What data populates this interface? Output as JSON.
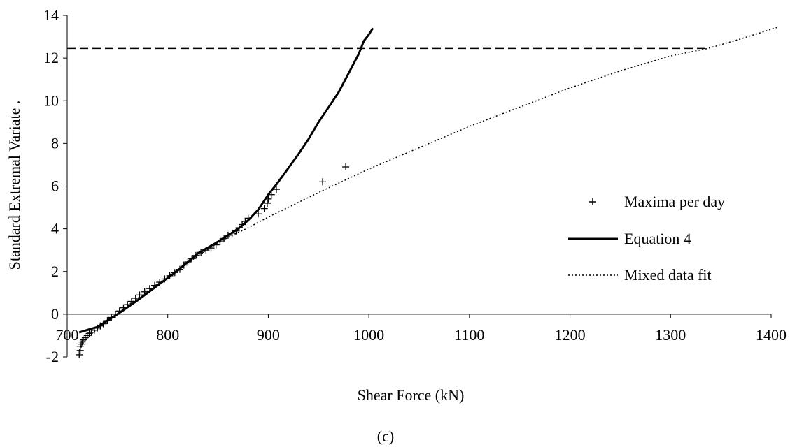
{
  "chart_data": {
    "type": "scatter",
    "xlabel": "Shear Force (kN)",
    "ylabel": "Standard Extremal Variate  .",
    "caption": "(c)",
    "xlim": [
      700,
      1400
    ],
    "ylim": [
      -2,
      14
    ],
    "x_ticks": [
      {
        "value": 700,
        "label": "700"
      },
      {
        "value": 800,
        "label": "800"
      },
      {
        "value": 900,
        "label": "900"
      },
      {
        "value": 1000,
        "label": "1000"
      },
      {
        "value": 1100,
        "label": "1100"
      },
      {
        "value": 1200,
        "label": "1200"
      },
      {
        "value": 1300,
        "label": "1300"
      },
      {
        "value": 1400,
        "label": "1400"
      }
    ],
    "y_ticks": [
      {
        "value": -2,
        "label": "-2"
      },
      {
        "value": 0,
        "label": "0"
      },
      {
        "value": 2,
        "label": "2"
      },
      {
        "value": 4,
        "label": "4"
      },
      {
        "value": 6,
        "label": "6"
      },
      {
        "value": 8,
        "label": "8"
      },
      {
        "value": 10,
        "label": "10"
      },
      {
        "value": 12,
        "label": "12"
      },
      {
        "value": 14,
        "label": "14"
      }
    ],
    "grid": false,
    "legend_position": "right",
    "series": [
      {
        "name": "Maxima per day",
        "kind": "scatter",
        "marker": "plus",
        "points": [
          [
            712,
            -1.9
          ],
          [
            713,
            -1.7
          ],
          [
            713,
            -1.5
          ],
          [
            714,
            -1.4
          ],
          [
            715,
            -1.3
          ],
          [
            716,
            -1.2
          ],
          [
            718,
            -1.1
          ],
          [
            720,
            -1.0
          ],
          [
            722,
            -0.9
          ],
          [
            724,
            -0.85
          ],
          [
            727,
            -0.75
          ],
          [
            730,
            -0.65
          ],
          [
            733,
            -0.55
          ],
          [
            736,
            -0.45
          ],
          [
            740,
            -0.3
          ],
          [
            744,
            -0.15
          ],
          [
            748,
            0.0
          ],
          [
            752,
            0.15
          ],
          [
            756,
            0.3
          ],
          [
            760,
            0.45
          ],
          [
            764,
            0.6
          ],
          [
            768,
            0.75
          ],
          [
            772,
            0.9
          ],
          [
            777,
            1.05
          ],
          [
            782,
            1.2
          ],
          [
            787,
            1.35
          ],
          [
            792,
            1.5
          ],
          [
            797,
            1.65
          ],
          [
            802,
            1.8
          ],
          [
            807,
            1.95
          ],
          [
            812,
            2.1
          ],
          [
            816,
            2.3
          ],
          [
            820,
            2.45
          ],
          [
            824,
            2.6
          ],
          [
            828,
            2.75
          ],
          [
            833,
            2.9
          ],
          [
            838,
            3.0
          ],
          [
            843,
            3.1
          ],
          [
            848,
            3.25
          ],
          [
            852,
            3.4
          ],
          [
            856,
            3.55
          ],
          [
            860,
            3.7
          ],
          [
            864,
            3.8
          ],
          [
            868,
            3.9
          ],
          [
            871,
            4.05
          ],
          [
            874,
            4.2
          ],
          [
            877,
            4.35
          ],
          [
            880,
            4.5
          ],
          [
            890,
            4.7
          ],
          [
            896,
            4.95
          ],
          [
            899,
            5.2
          ],
          [
            900,
            5.4
          ],
          [
            903,
            5.6
          ],
          [
            908,
            5.85
          ],
          [
            954,
            6.2
          ],
          [
            977,
            6.9
          ]
        ]
      },
      {
        "name": "Equation 4",
        "kind": "line",
        "style": "solid",
        "points": [
          [
            712,
            -0.85
          ],
          [
            730,
            -0.6
          ],
          [
            750,
            0.0
          ],
          [
            770,
            0.65
          ],
          [
            790,
            1.35
          ],
          [
            810,
            2.05
          ],
          [
            830,
            2.85
          ],
          [
            850,
            3.4
          ],
          [
            870,
            4.0
          ],
          [
            880,
            4.4
          ],
          [
            890,
            4.9
          ],
          [
            900,
            5.6
          ],
          [
            910,
            6.2
          ],
          [
            920,
            6.85
          ],
          [
            930,
            7.5
          ],
          [
            940,
            8.2
          ],
          [
            950,
            9.0
          ],
          [
            960,
            9.7
          ],
          [
            970,
            10.4
          ],
          [
            980,
            11.3
          ],
          [
            990,
            12.2
          ],
          [
            995,
            12.8
          ],
          [
            1000,
            13.1
          ],
          [
            1004,
            13.4
          ]
        ]
      },
      {
        "name": "Mixed data fit",
        "kind": "line",
        "style": "dotted",
        "points": [
          [
            712,
            -1.7
          ],
          [
            720,
            -1.05
          ],
          [
            740,
            -0.35
          ],
          [
            760,
            0.4
          ],
          [
            780,
            1.1
          ],
          [
            800,
            1.75
          ],
          [
            820,
            2.4
          ],
          [
            840,
            3.05
          ],
          [
            860,
            3.6
          ],
          [
            880,
            4.05
          ],
          [
            900,
            4.55
          ],
          [
            950,
            5.7
          ],
          [
            1000,
            6.8
          ],
          [
            1050,
            7.8
          ],
          [
            1100,
            8.8
          ],
          [
            1150,
            9.7
          ],
          [
            1200,
            10.6
          ],
          [
            1250,
            11.4
          ],
          [
            1300,
            12.1
          ],
          [
            1337,
            12.45
          ],
          [
            1370,
            12.9
          ],
          [
            1407,
            13.45
          ]
        ]
      },
      {
        "name": "",
        "kind": "hline",
        "style": "dashed",
        "y": 12.45,
        "x_range": [
          700,
          1337
        ]
      }
    ]
  }
}
